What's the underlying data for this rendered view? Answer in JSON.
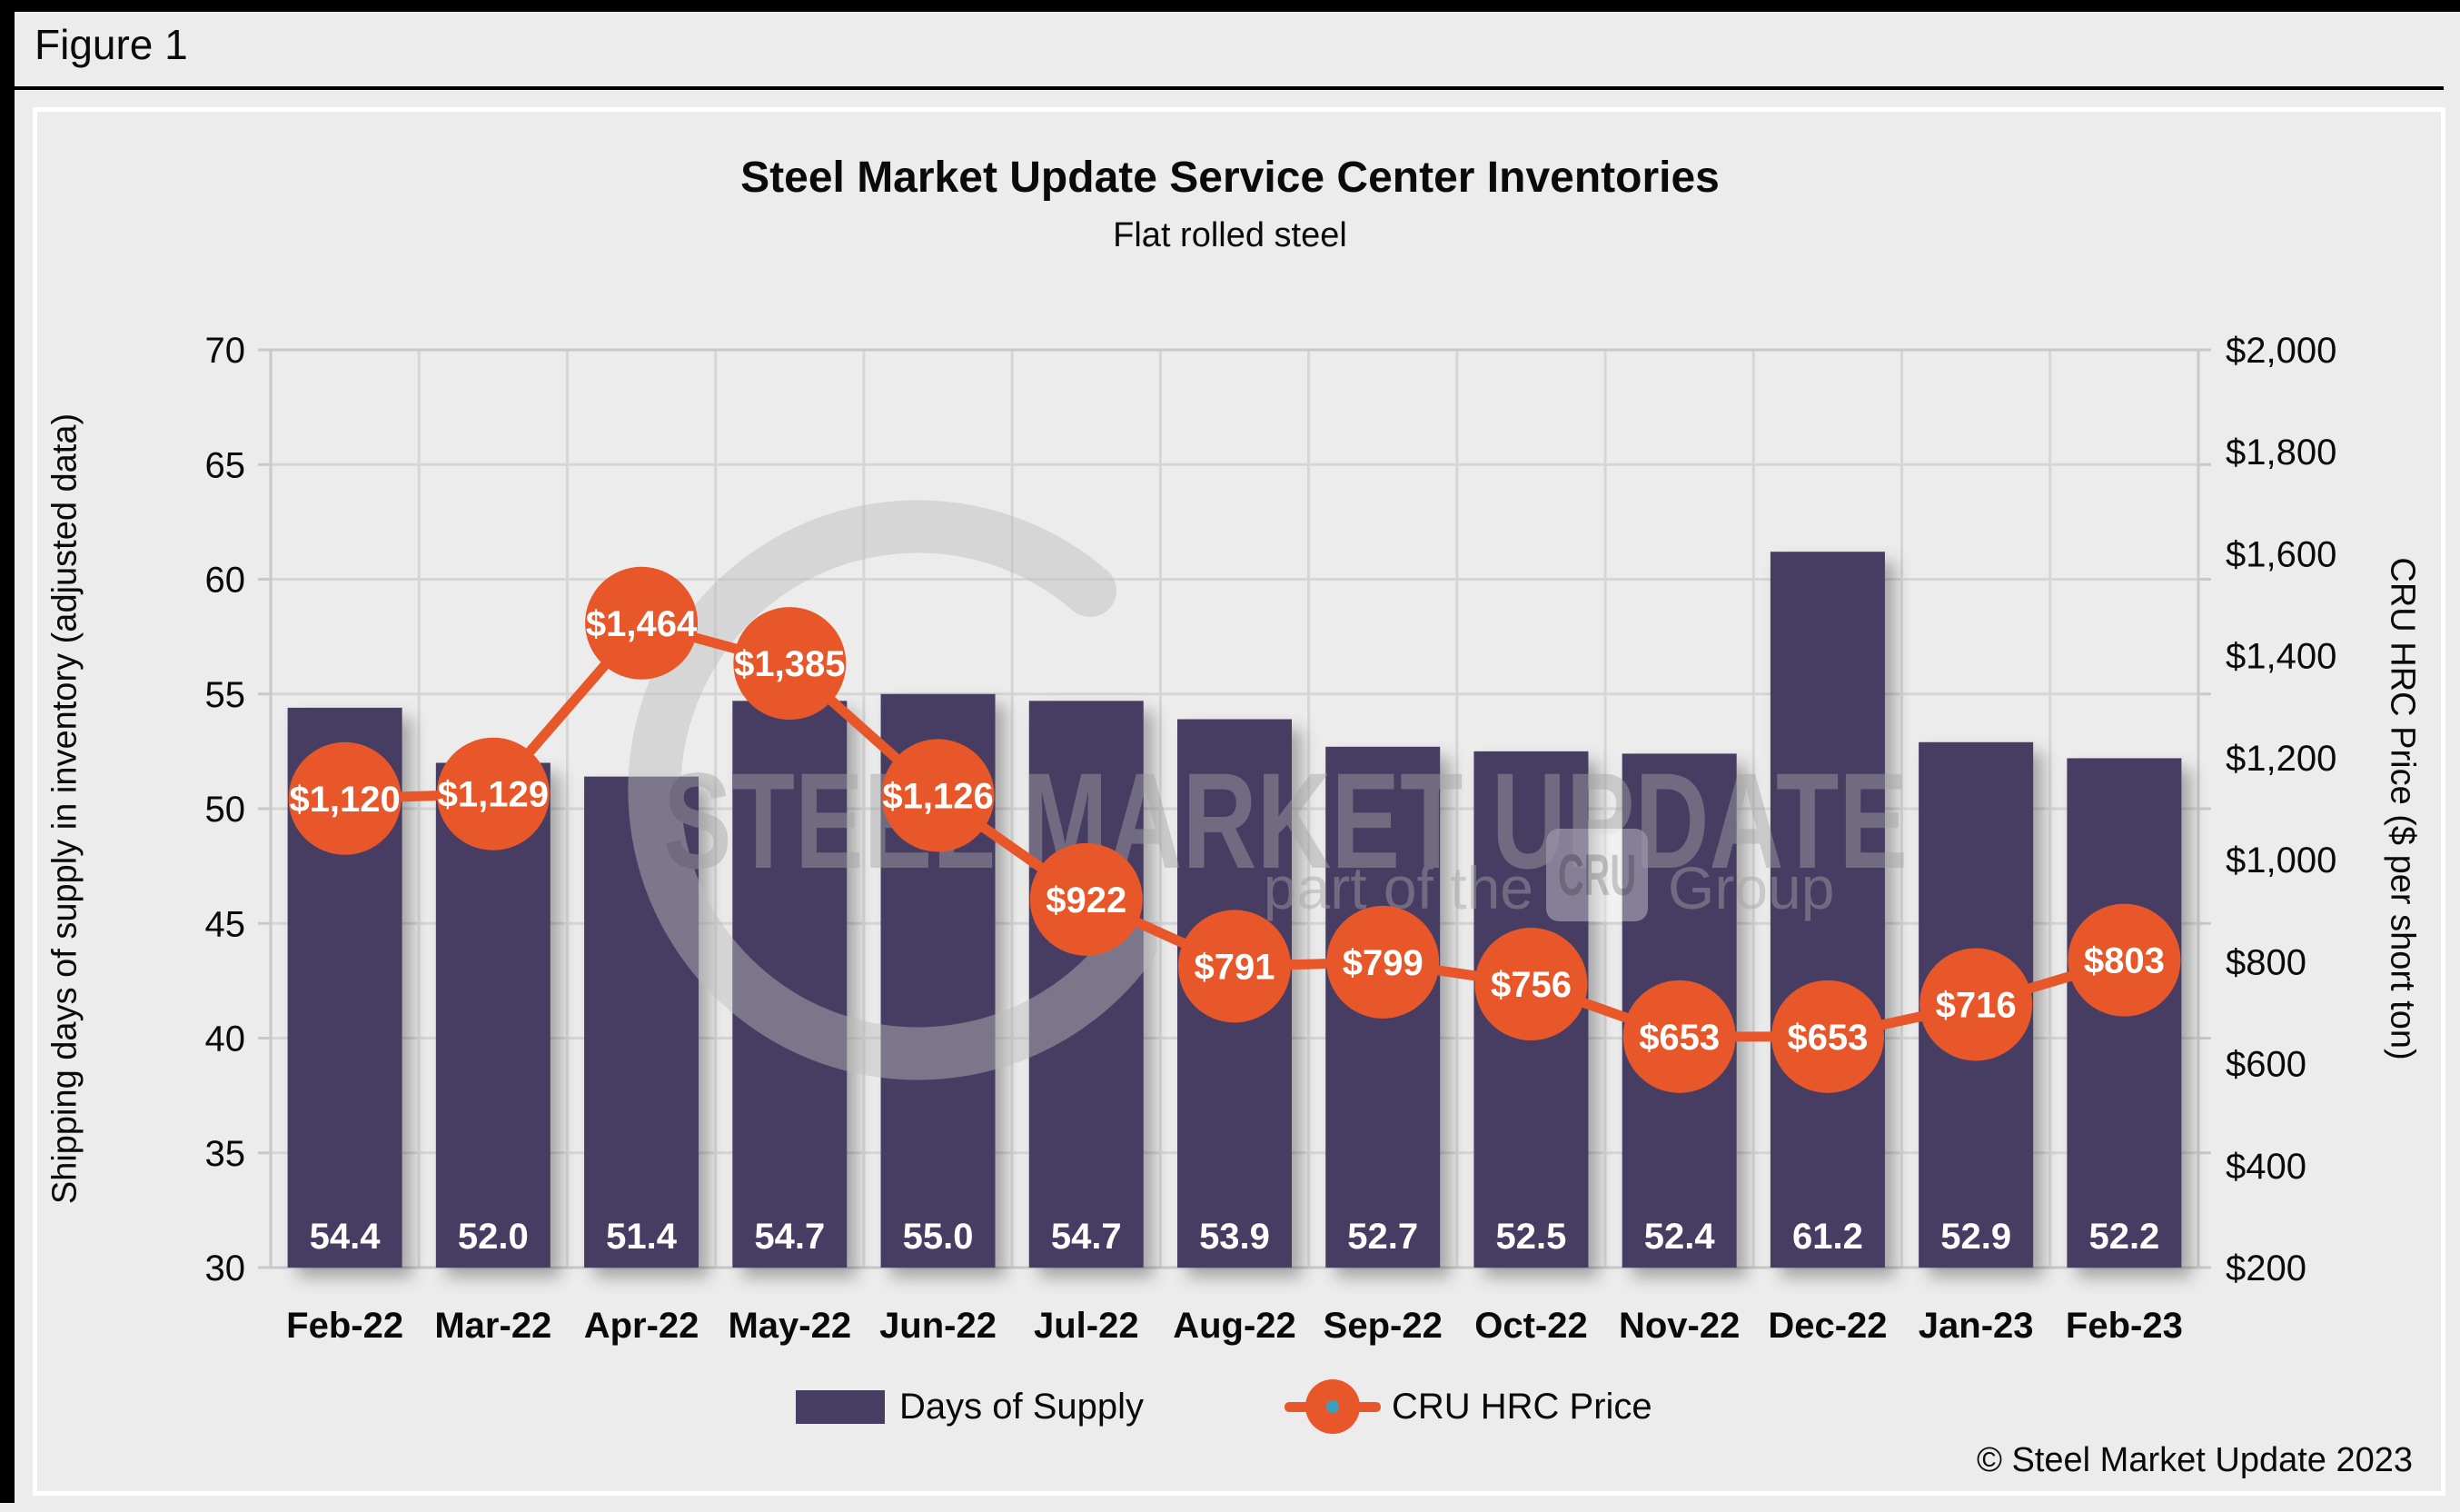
{
  "header": {
    "figure_label": "Figure 1"
  },
  "chart": {
    "title": "Steel Market Update Service Center Inventories",
    "subtitle": "Flat rolled steel",
    "left_axis_title": "Shipping days of supply in inventory (adjusted data)",
    "right_axis_title": "CRU HRC Price ($ per short ton)",
    "copyright": "© Steel Market Update 2023"
  },
  "legend": {
    "bars_label": "Days of Supply",
    "line_label": "CRU HRC Price"
  },
  "watermark": {
    "line1": "STEEL MARKET UPDATE",
    "line2_prefix": "part of the",
    "line2_box": "CRU",
    "line2_suffix": "Group"
  },
  "colors": {
    "bar": "#463d63",
    "line": "#e8572a",
    "grid": "#d6d6d6",
    "frame": "#c9c9c9",
    "background": "#ececec",
    "legend_dot": "#3d9fc0",
    "watermark": "#aaaaaa",
    "label_white": "#ffffff",
    "text": "#0a0a0a"
  },
  "chart_data": {
    "type": "bar+line",
    "title": "Steel Market Update Service Center Inventories",
    "subtitle": "Flat rolled steel",
    "categories": [
      "Feb-22",
      "Mar-22",
      "Apr-22",
      "May-22",
      "Jun-22",
      "Jul-22",
      "Aug-22",
      "Sep-22",
      "Oct-22",
      "Nov-22",
      "Dec-22",
      "Jan-23",
      "Feb-23"
    ],
    "series": [
      {
        "name": "Days of Supply",
        "type": "bar",
        "axis": "left",
        "values": [
          54.4,
          52.0,
          51.4,
          54.7,
          55.0,
          54.7,
          53.9,
          52.7,
          52.5,
          52.4,
          61.2,
          52.9,
          52.2
        ],
        "labels": [
          "54.4",
          "52.0",
          "51.4",
          "54.7",
          "55.0",
          "54.7",
          "53.9",
          "52.7",
          "52.5",
          "52.4",
          "61.2",
          "52.9",
          "52.2"
        ]
      },
      {
        "name": "CRU HRC Price",
        "type": "line",
        "axis": "right",
        "values": [
          1120,
          1129,
          1464,
          1385,
          1126,
          922,
          791,
          799,
          756,
          653,
          653,
          716,
          803
        ],
        "labels": [
          "$1,120",
          "$1,129",
          "$1,464",
          "$1,385",
          "$1,126",
          "$922",
          "$791",
          "$799",
          "$756",
          "$653",
          "$653",
          "$716",
          "$803"
        ]
      }
    ],
    "left_axis": {
      "label": "Shipping days of supply in inventory (adjusted data)",
      "min": 30,
      "max": 70,
      "tick_values": [
        30,
        35,
        40,
        45,
        50,
        55,
        60,
        65,
        70
      ],
      "ticks": [
        "30",
        "35",
        "40",
        "45",
        "50",
        "55",
        "60",
        "65",
        "70"
      ]
    },
    "right_axis": {
      "label": "CRU HRC Price ($ per short ton)",
      "min": 200,
      "max": 2000,
      "tick_values": [
        200,
        400,
        600,
        800,
        1000,
        1200,
        1400,
        1600,
        1800,
        2000
      ],
      "ticks": [
        "$200",
        "$400",
        "$600",
        "$800",
        "$1,000",
        "$1,200",
        "$1,400",
        "$1,600",
        "$1,800",
        "$2,000"
      ]
    },
    "grid": true,
    "legend_position": "bottom"
  }
}
